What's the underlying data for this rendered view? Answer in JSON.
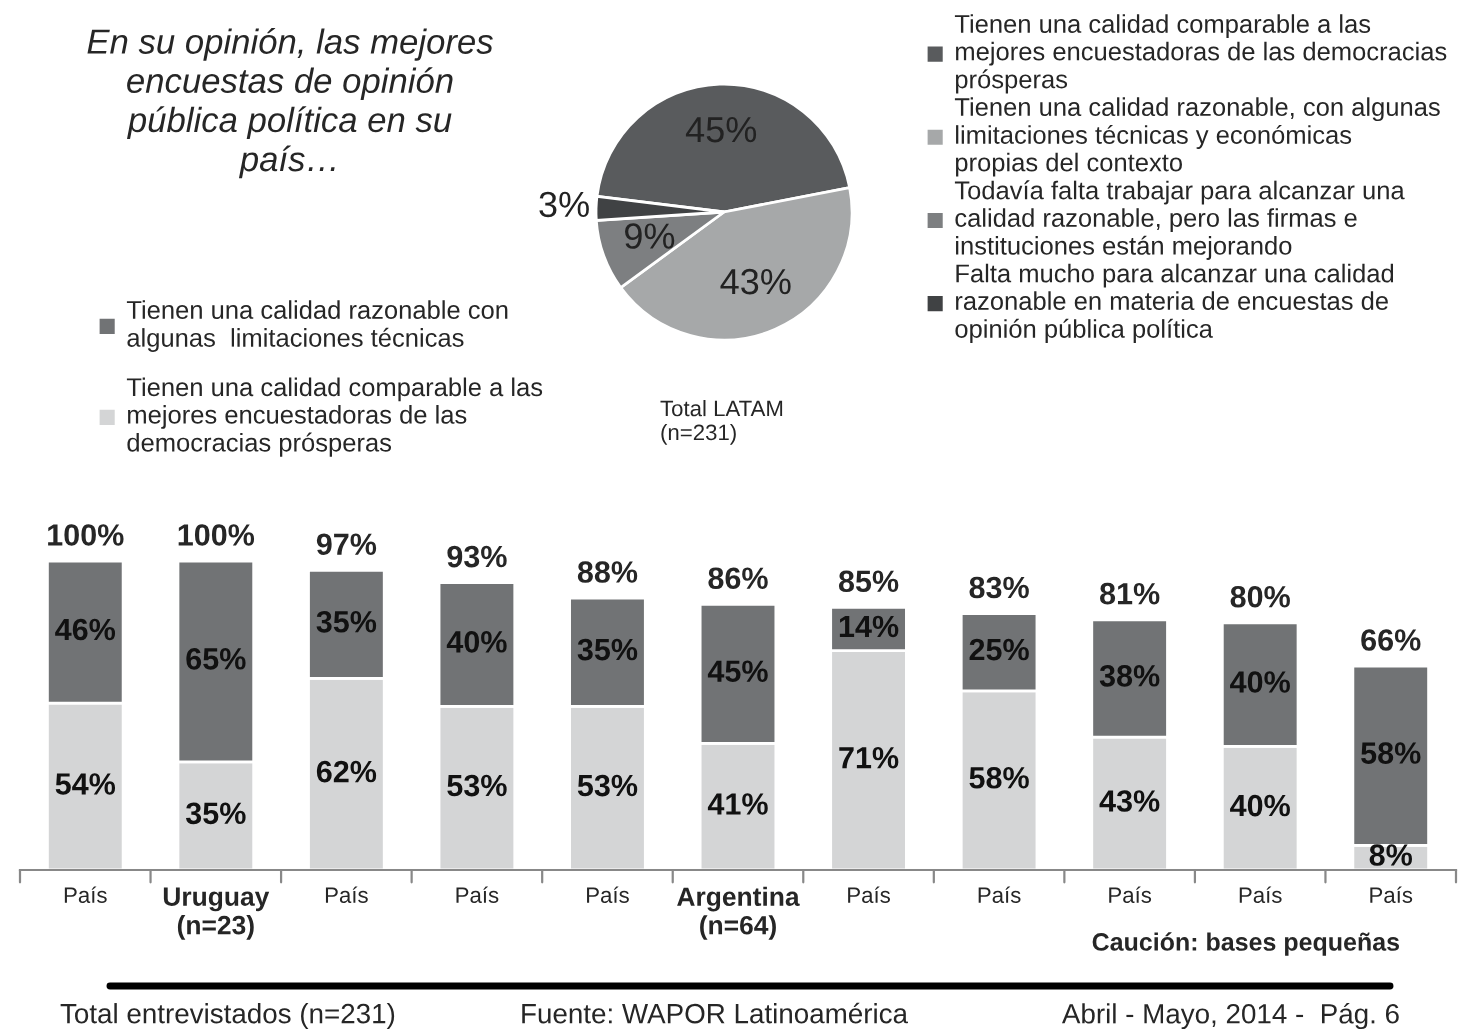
{
  "chart_data": [
    {
      "type": "pie",
      "title": "En su opinión, las mejores\nencuestas de opinión\npública política en su\npaís…",
      "categories": [
        "Tienen una calidad comparable a las\nmejores encuestadoras de las democracias\nprósperas",
        "Tienen una calidad razonable, con algunas\nlimitaciones técnicas y económicas\npropias del contexto",
        "Todavía falta trabajar para alcanzar una\ncalidad razonable, pero las firmas e\ninstituciones están mejorando",
        "Falta mucho para alcanzar una calidad\nrazonable en materia de encuestas de\nopinión pública política"
      ],
      "values": [
        45,
        43,
        9,
        3
      ],
      "value_labels": [
        "45%",
        "43%",
        "9%",
        "3%"
      ],
      "colors": [
        "#595b5d",
        "#a6a8a9",
        "#7d7f81",
        "#404244"
      ],
      "legend": "right",
      "annotations": [
        "Total LATAM\n(n=231)"
      ]
    },
    {
      "type": "bar",
      "stacked": true,
      "categories": [
        "País",
        "Uruguay\n(n=23)",
        "País",
        "País",
        "País",
        "Argentina\n(n=64)",
        "País",
        "País",
        "País",
        "País",
        "País"
      ],
      "series": [
        {
          "name": "Tienen una calidad comparable a las\nmejores encuestadoras de las\ndemocracias prósperas",
          "color": "#d4d5d6",
          "values": [
            54,
            35,
            62,
            53,
            53,
            41,
            71,
            58,
            43,
            40,
            8
          ],
          "value_labels": [
            "54%",
            "35%",
            "62%",
            "53%",
            "53%",
            "41%",
            "71%",
            "58%",
            "43%",
            "40%",
            "8%"
          ]
        },
        {
          "name": "Tienen una calidad razonable con\nalgunas  limitaciones técnicas",
          "color": "#717375",
          "values": [
            46,
            65,
            35,
            40,
            35,
            45,
            14,
            25,
            38,
            40,
            58
          ],
          "value_labels": [
            "46%",
            "65%",
            "35%",
            "40%",
            "35%",
            "45%",
            "14%",
            "25%",
            "38%",
            "40%",
            "58%"
          ]
        }
      ],
      "totals": [
        "100%",
        "100%",
        "97%",
        "93%",
        "88%",
        "86%",
        "85%",
        "83%",
        "81%",
        "80%",
        "66%"
      ],
      "legend": "top left",
      "annotations": [
        "Caución: bases pequeñas",
        "Total entrevistados (n=231)",
        "Fuente: WAPOR Latinoamérica",
        "Abril - Mayo, 2014 -  Pág. 6"
      ]
    }
  ]
}
